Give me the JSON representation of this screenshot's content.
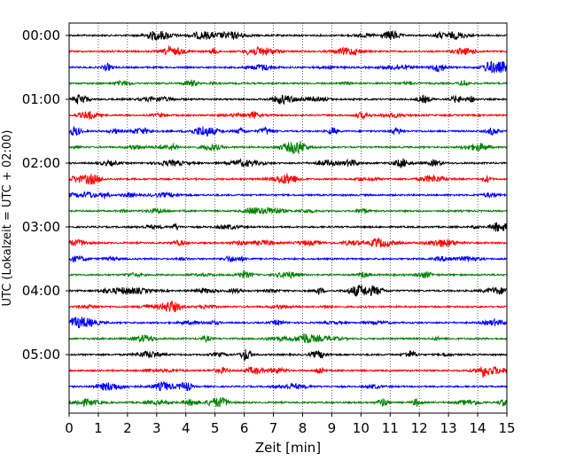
{
  "chart_data": {
    "type": "line",
    "subtype": "helicorder-seismogram",
    "title": "",
    "xlabel": "Zeit  [min]",
    "ylabel": "UTC (Lokalzeit = UTC + 02:00)",
    "xlim": [
      0,
      15
    ],
    "x_ticks": [
      "0",
      "1",
      "2",
      "3",
      "4",
      "5",
      "6",
      "7",
      "8",
      "9",
      "10",
      "11",
      "12",
      "13",
      "14",
      "15"
    ],
    "y_tick_labels": [
      "00:00",
      "01:00",
      "02:00",
      "03:00",
      "04:00",
      "05:00"
    ],
    "trace_minutes_per_line": 15,
    "trace_start_times": [
      "00:00",
      "00:15",
      "00:30",
      "00:45",
      "01:00",
      "01:15",
      "01:30",
      "01:45",
      "02:00",
      "02:15",
      "02:30",
      "02:45",
      "03:00",
      "03:15",
      "03:30",
      "03:45",
      "04:00",
      "04:15",
      "04:30",
      "04:45",
      "05:00",
      "05:15",
      "05:30",
      "05:45"
    ],
    "trace_colors": [
      "#000000",
      "#ff0000",
      "#0000ff",
      "#008000"
    ],
    "vertical_grid": "dotted",
    "legend": "none"
  }
}
